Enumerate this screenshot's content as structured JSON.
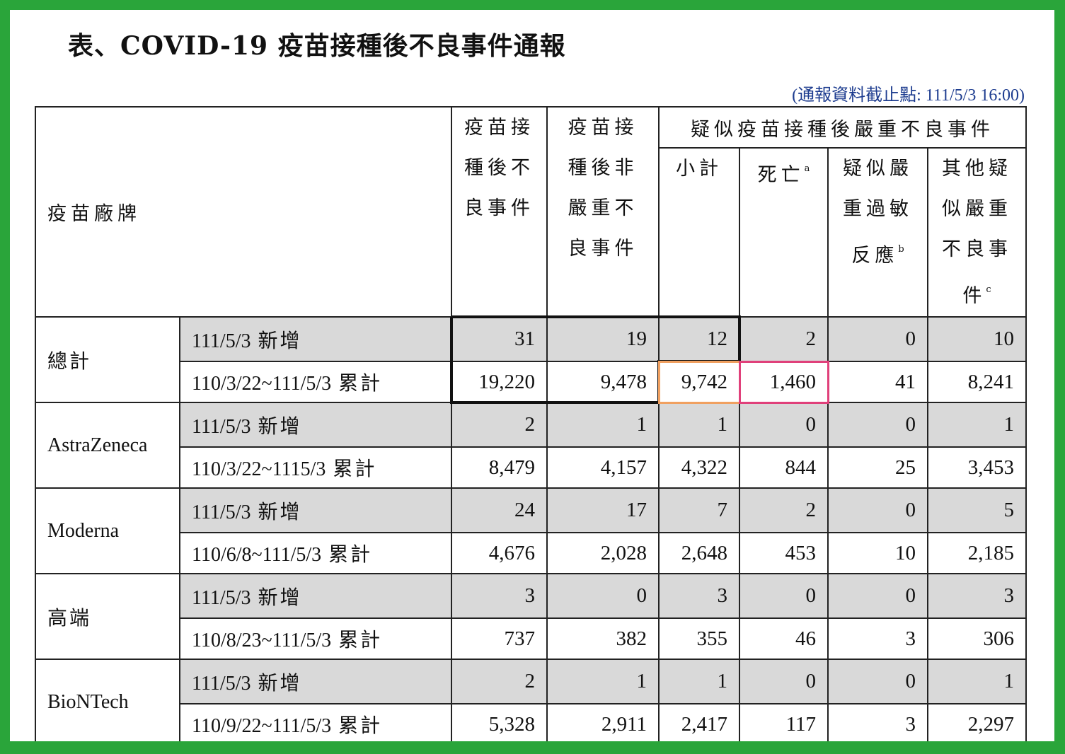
{
  "title": "表、COVID-19 疫苗接種後不良事件通報",
  "cutoff_note": "(通報資料截止點: 111/5/3 16:00)",
  "header": {
    "brand": "疫苗廠牌",
    "total_events": [
      "疫苗接",
      "種後不",
      "良事件"
    ],
    "non_serious": [
      "疫苗接",
      "種後非",
      "嚴重不",
      "良事件"
    ],
    "serious_group": "疑似疫苗接種後嚴重不良事件",
    "subtotal": "小計",
    "death": "死亡",
    "death_sup": "a",
    "anaphylaxis": [
      "疑似嚴",
      "重過敏",
      "反應"
    ],
    "anaphylaxis_sup": "b",
    "other_serious": [
      "其他疑",
      "似嚴重",
      "不良事",
      "件"
    ],
    "other_serious_sup": "c"
  },
  "period_keywords": {
    "new": "新增",
    "cumulative": "累計"
  },
  "rows": [
    {
      "brand": "總計",
      "new": {
        "date": "111/5/3",
        "values": [
          "31",
          "19",
          "12",
          "2",
          "0",
          "10"
        ]
      },
      "cum": {
        "date": "110/3/22~111/5/3",
        "values": [
          "19,220",
          "9,478",
          "9,742",
          "1,460",
          "41",
          "8,241"
        ]
      }
    },
    {
      "brand": "AstraZeneca",
      "new": {
        "date": "111/5/3",
        "values": [
          "2",
          "1",
          "1",
          "0",
          "0",
          "1"
        ]
      },
      "cum": {
        "date": "110/3/22~1115/3",
        "values": [
          "8,479",
          "4,157",
          "4,322",
          "844",
          "25",
          "3,453"
        ]
      }
    },
    {
      "brand": "Moderna",
      "new": {
        "date": "111/5/3",
        "values": [
          "24",
          "17",
          "7",
          "2",
          "0",
          "5"
        ]
      },
      "cum": {
        "date": "110/6/8~111/5/3",
        "values": [
          "4,676",
          "2,028",
          "2,648",
          "453",
          "10",
          "2,185"
        ]
      }
    },
    {
      "brand": "高端",
      "new": {
        "date": "111/5/3",
        "values": [
          "3",
          "0",
          "3",
          "0",
          "0",
          "3"
        ]
      },
      "cum": {
        "date": "110/8/23~111/5/3",
        "values": [
          "737",
          "382",
          "355",
          "46",
          "3",
          "306"
        ]
      }
    },
    {
      "brand": "BioNTech",
      "new": {
        "date": "111/5/3",
        "values": [
          "2",
          "1",
          "1",
          "0",
          "0",
          "1"
        ]
      },
      "cum": {
        "date": "110/9/22~111/5/3",
        "values": [
          "5,328",
          "2,911",
          "2,417",
          "117",
          "3",
          "2,297"
        ]
      }
    }
  ],
  "highlight_colors": {
    "black": "#111111",
    "orange": "#f0a060",
    "pink": "#e0407a"
  },
  "frame_color": "#2aa53a"
}
